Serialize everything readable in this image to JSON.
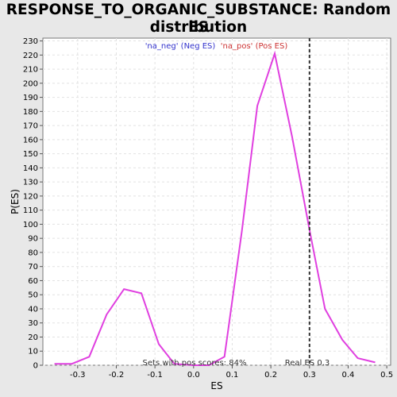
{
  "title_line1": "RESPONSE_TO_ORGANIC_SUBSTANCE: Random ES",
  "title_line2": "distribution",
  "chart_data": {
    "type": "line",
    "title": "RESPONSE_TO_ORGANIC_SUBSTANCE: Random ES distribution",
    "xlabel": "ES",
    "ylabel": "P(ES)",
    "xlim": [
      -0.39,
      0.51
    ],
    "ylim": [
      0,
      232
    ],
    "x_ticks": [
      -0.3,
      -0.2,
      -0.1,
      0.0,
      0.1,
      0.2,
      0.3,
      0.4,
      0.5
    ],
    "x_tick_labels": [
      "-0.3",
      "-0.2",
      "-0.1",
      "0.0",
      "0.1",
      "0.2",
      "0.3",
      "0.4",
      "0.5"
    ],
    "y_ticks": [
      0,
      10,
      20,
      30,
      40,
      50,
      60,
      70,
      80,
      90,
      100,
      110,
      120,
      130,
      140,
      150,
      160,
      170,
      180,
      190,
      200,
      210,
      220,
      230
    ],
    "grid": true,
    "legend": [
      {
        "label": "'na_neg' (Neg ES)",
        "color": "#3333cc"
      },
      {
        "label": "'na_pos' (Pos ES)",
        "color": "#cc3333"
      }
    ],
    "series": [
      {
        "color": "#e040e0",
        "x": [
          -0.36,
          -0.315,
          -0.27,
          -0.225,
          -0.18,
          -0.135,
          -0.09,
          -0.05,
          0.0,
          0.04,
          0.08,
          0.125,
          0.165,
          0.21,
          0.255,
          0.3,
          0.34,
          0.385,
          0.425,
          0.47
        ],
        "y": [
          1,
          1,
          6,
          36,
          54,
          51,
          15,
          1,
          0,
          0,
          6,
          95,
          184,
          221,
          162,
          96,
          40,
          18,
          5,
          2
        ]
      }
    ],
    "vline": {
      "x": 0.3,
      "style": "dashed"
    },
    "annotations": {
      "pos_scores": "Sets with pos scores: 84%",
      "real_es": "Real ES 0.3"
    }
  }
}
